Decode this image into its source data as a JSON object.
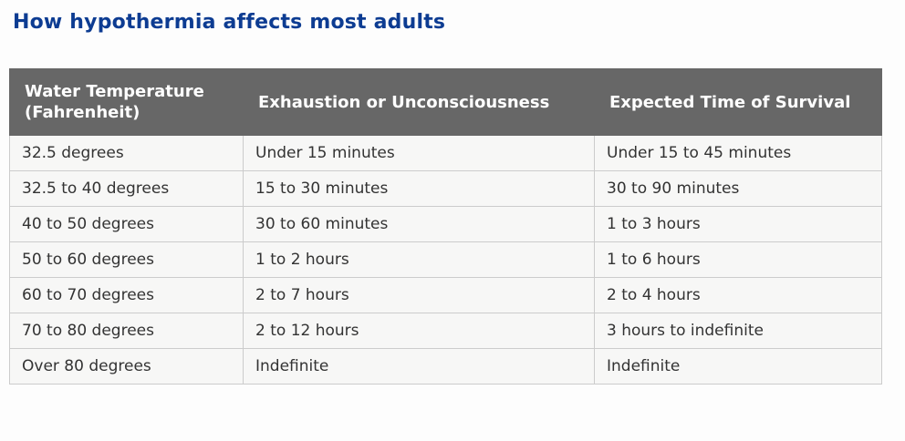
{
  "page": {
    "title": "How hypothermia affects most adults"
  },
  "colors": {
    "title_text": "#0d3c92",
    "header_bg": "#676767",
    "header_text": "#ffffff",
    "cell_bg": "#f7f7f6",
    "cell_text": "#333333",
    "cell_border": "#cccccc",
    "table_outer_border": "#b9b9b9",
    "page_bg": "#fdfdfd"
  },
  "chart_data": {
    "type": "table",
    "title": "How hypothermia affects most adults",
    "columns": [
      "Water Temperature (Fahrenheit)",
      "Exhaustion or Unconsciousness",
      "Expected Time of Survival"
    ],
    "rows": [
      [
        "32.5 degrees",
        "Under 15 minutes",
        "Under 15 to 45 minutes"
      ],
      [
        "32.5 to 40 degrees",
        "15 to 30 minutes",
        "30 to 90 minutes"
      ],
      [
        "40 to 50 degrees",
        "30 to 60 minutes",
        "1 to 3 hours"
      ],
      [
        "50 to 60 degrees",
        "1 to 2 hours",
        "1 to 6 hours"
      ],
      [
        "60 to 70 degrees",
        "2 to 7 hours",
        "2 to 4 hours"
      ],
      [
        "70 to 80 degrees",
        "2 to 12 hours",
        "3 hours to indefinite"
      ],
      [
        "Over 80 degrees",
        "Indefinite",
        "Indefinite"
      ]
    ]
  }
}
